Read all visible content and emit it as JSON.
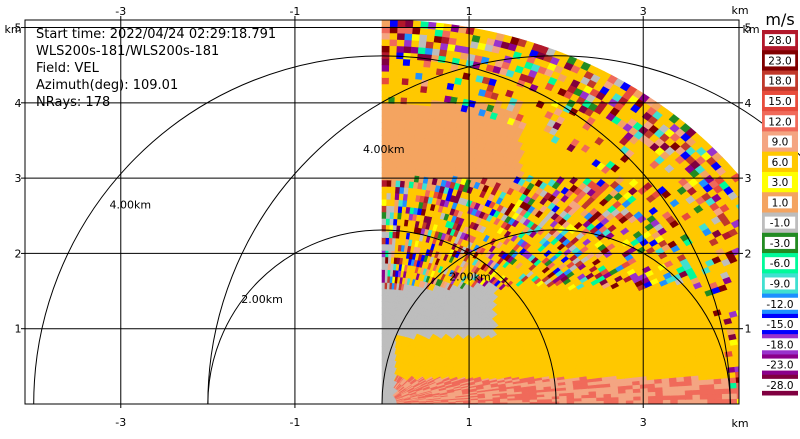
{
  "info": {
    "start_time": "Start time: 2022/04/24 02:29:18.791",
    "instrument": "WLS200s-181/WLS200s-181",
    "field": "Field: VEL",
    "azimuth": "Azimuth(deg): 109.01",
    "nrays": "NRays: 178"
  },
  "chart_data": {
    "type": "heatmap",
    "title": "",
    "xlabel": "km",
    "ylabel": "km",
    "xlim": [
      -4.1,
      4.1
    ],
    "ylim": [
      0,
      5.1
    ],
    "x_ticks": [
      -3,
      -1,
      1,
      3
    ],
    "y_ticks": [
      1,
      2,
      3,
      4,
      5
    ],
    "grid": true,
    "rays": 178,
    "sector_deg": [
      0,
      90
    ],
    "max_range_km": 5.1,
    "range_rings": [
      {
        "center": [
          0,
          0
        ],
        "radius": 4.0,
        "label": "4.00km"
      },
      {
        "center": [
          0,
          0
        ],
        "radius": 2.0,
        "label": "2.00km"
      },
      {
        "center": [
          2,
          0
        ],
        "radius": 2.0,
        "label": "2.00km"
      },
      {
        "center": [
          2,
          0
        ],
        "radius": 4.0,
        "label": "4.00km"
      }
    ],
    "colorbar": {
      "unit": "m/s",
      "labels": [
        "28.0",
        "23.0",
        "18.0",
        "15.0",
        "12.0",
        "9.0",
        "6.0",
        "3.0",
        "1.0",
        "-1.0",
        "-3.0",
        "-6.0",
        "-9.0",
        "-12.0",
        "-15.0",
        "-18.0",
        "-23.0",
        "-28.0"
      ],
      "colors": [
        "#b2182b",
        "#800000",
        "#c0392b",
        "#e74c3c",
        "#f06a5a",
        "#f4a582",
        "#ffc800",
        "#ffff00",
        "#f4a460",
        "#bdbdbd",
        "#228b22",
        "#00fa9a",
        "#40e0d0",
        "#1e90ff",
        "#0000ff",
        "#9932cc",
        "#8b008b",
        "#800040"
      ]
    }
  }
}
